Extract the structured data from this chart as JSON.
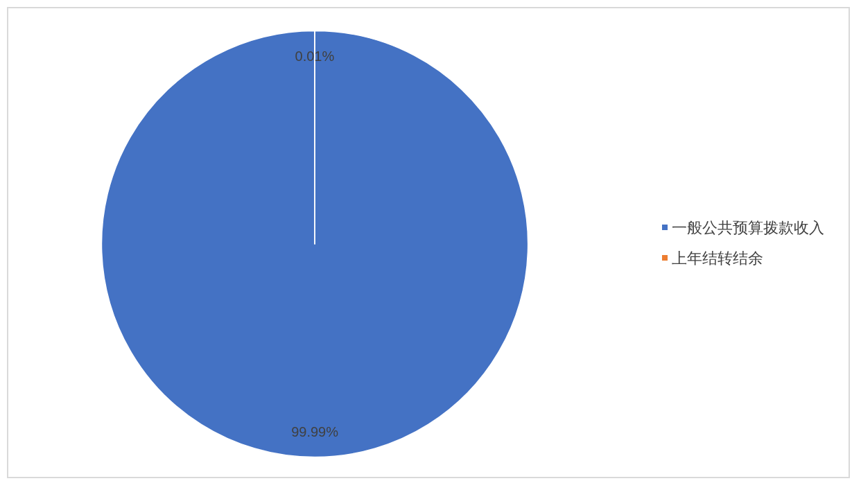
{
  "chart_data": {
    "type": "pie",
    "categories": [
      "一般公共预算拨款收入",
      "上年结转结余"
    ],
    "values": [
      99.99,
      0.01
    ],
    "colors": [
      "#4472c4",
      "#ed7d31"
    ],
    "value_labels": [
      "99.99%",
      "0.01%"
    ],
    "legend": "right"
  }
}
